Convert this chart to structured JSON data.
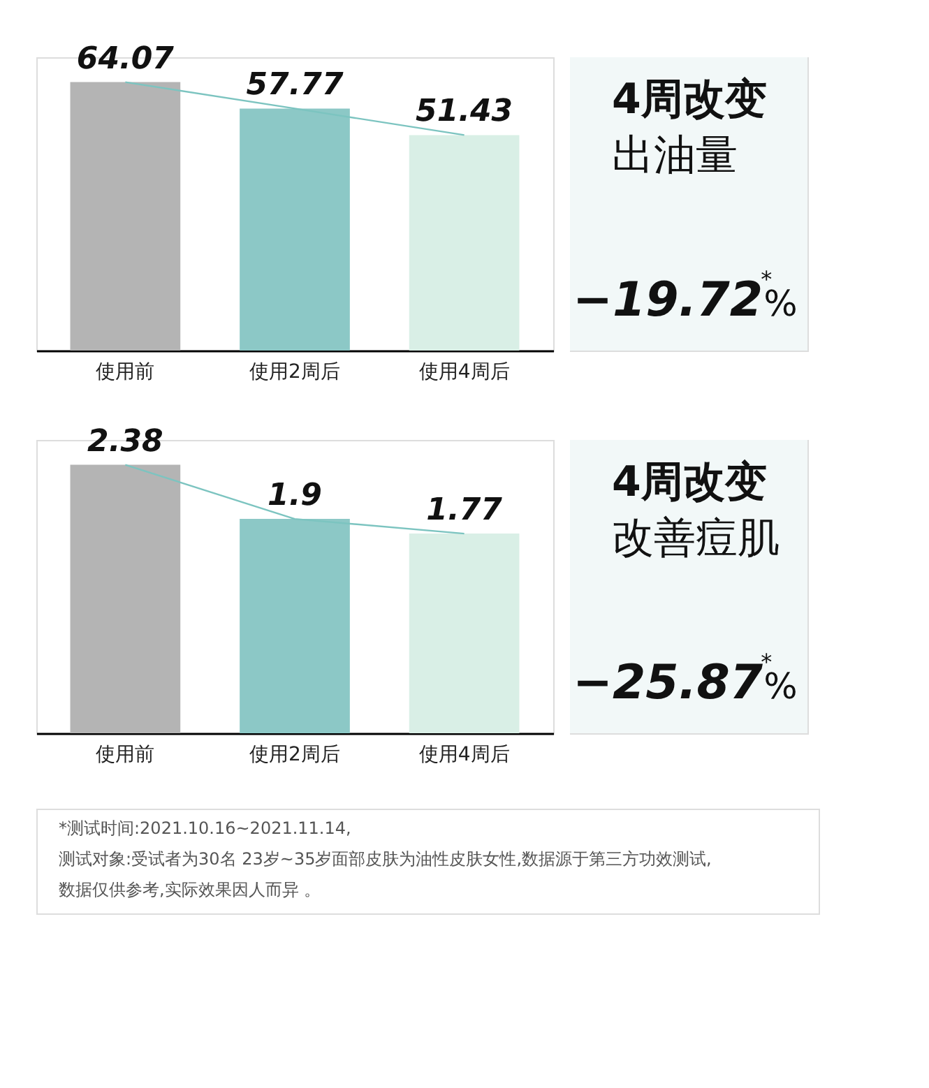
{
  "chart_data": [
    {
      "type": "bar",
      "categories": [
        "使用前",
        "使用2周后",
        "使用4周后"
      ],
      "ylim": [
        0,
        70
      ],
      "tick_labels": "x",
      "series": [
        {
          "type": "bar",
          "colors": [
            "#b4b4b4",
            "#8cc8c6",
            "#d9efe6"
          ],
          "values": [
            64.07,
            57.77,
            51.43
          ],
          "value_labels": [
            "64.07",
            "57.77",
            "51.43"
          ]
        },
        {
          "type": "line",
          "color": "#7cc4c0",
          "values": [
            64.07,
            57.77,
            51.43
          ]
        }
      ]
    },
    {
      "type": "other",
      "annotations": [
        "4周改变",
        "出油量",
        "−19.72$^{*}$%"
      ]
    },
    {
      "type": "bar",
      "categories": [
        "使用前",
        "使用2周后",
        "使用4周后"
      ],
      "ylim": [
        0,
        2.6
      ],
      "tick_labels": "x",
      "series": [
        {
          "type": "bar",
          "colors": [
            "#b4b4b4",
            "#8cc8c6",
            "#d9efe6"
          ],
          "values": [
            2.38,
            1.9,
            1.77
          ],
          "value_labels": [
            "2.38",
            "1.9",
            "1.77"
          ]
        },
        {
          "type": "line",
          "color": "#7cc4c0",
          "values": [
            2.38,
            1.9,
            1.77
          ]
        }
      ]
    },
    {
      "type": "other",
      "annotations": [
        "4周改变",
        "改善痘肌",
        "−25.87$^{*}$%"
      ]
    },
    {
      "type": "other",
      "annotations": [
        "*测试时间:2021.10.16~2021.11.14,",
        "测试对象:受试者为30名 23岁~35岁面部皮肤为油性皮肤女性,数据源于第三方功效测试,",
        "数据仅供参考,实际效果因人而异 。"
      ]
    }
  ]
}
